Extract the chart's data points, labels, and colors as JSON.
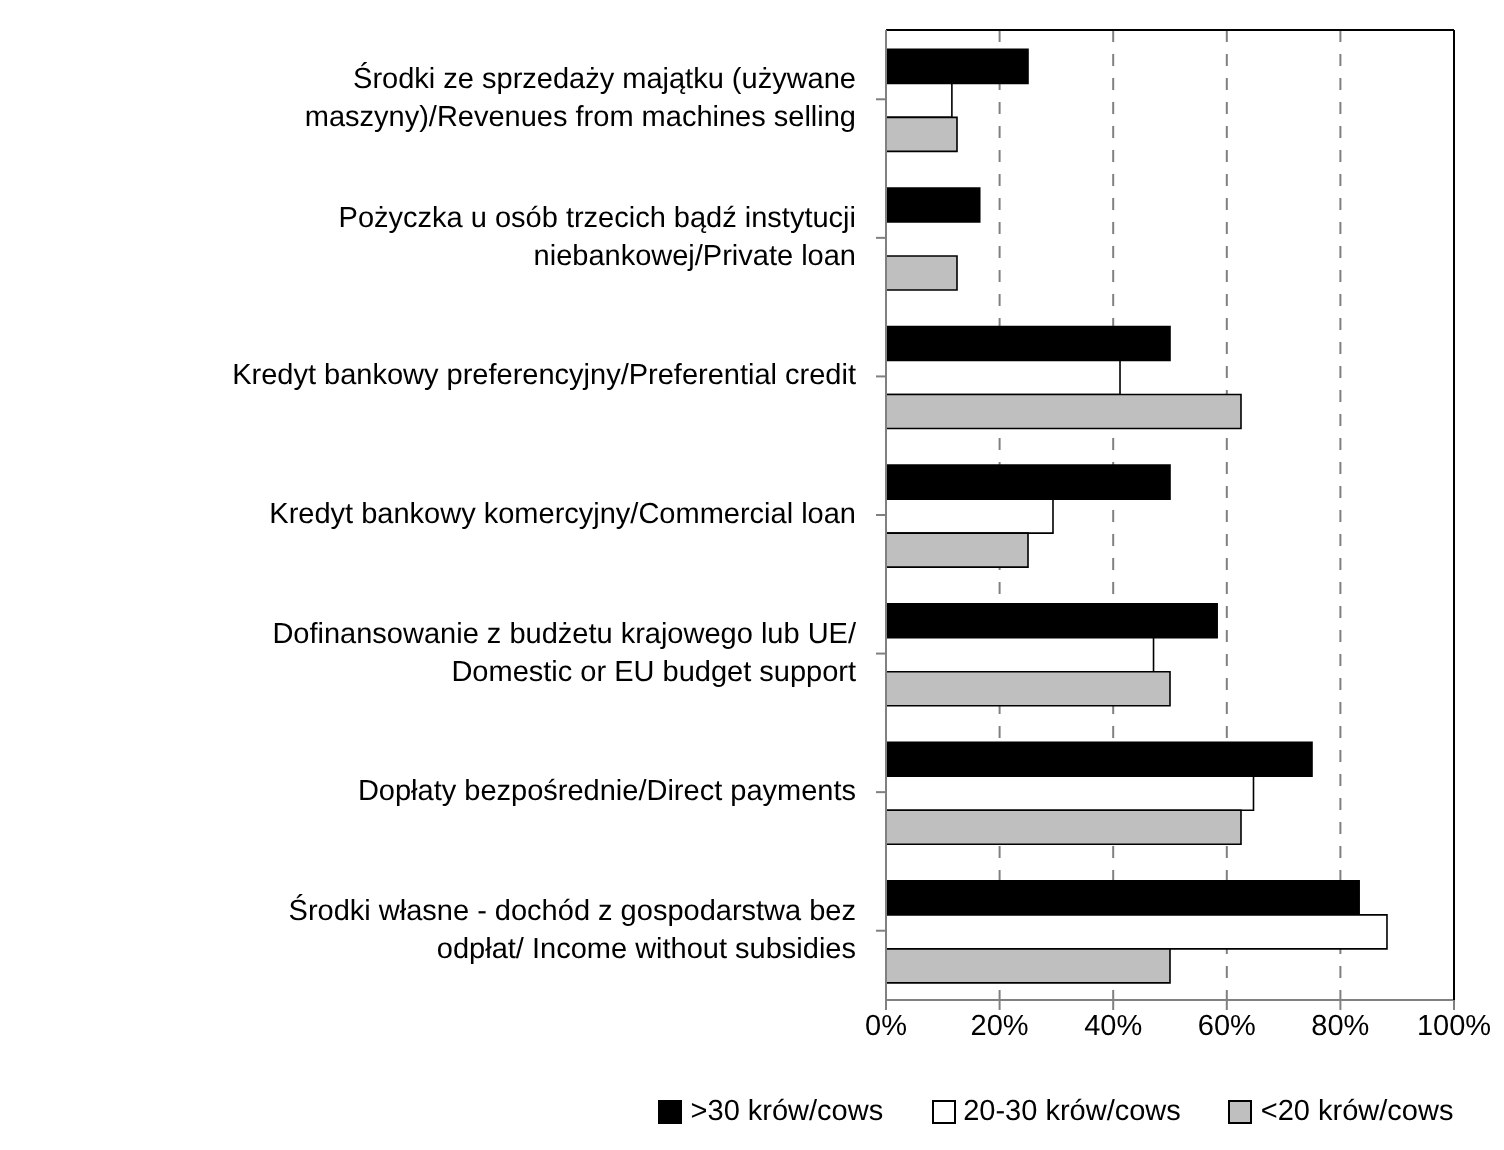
{
  "chart_data": {
    "type": "bar",
    "orientation": "horizontal",
    "categories": [
      "Środki ze sprzedaży majątku (używane maszyny)/Revenues from machines selling",
      "Pożyczka u osób trzecich bądź instytucji niebankowej/Private loan",
      "Kredyt bankowy preferencyjny/Preferential credit",
      "Kredyt bankowy komercyjny/Commercial loan",
      "Dofinansowanie z budżetu krajowego lub UE/ Domestic or EU budget support",
      "Dopłaty bezpośrednie/Direct payments",
      "Środki własne - dochód z gospodarstwa bez odpłat/ Income without subsidies"
    ],
    "series": [
      {
        "name": ">30 krów/cows",
        "color": "#000000",
        "values": [
          25,
          16.5,
          50,
          50,
          58.3,
          75,
          83.3
        ]
      },
      {
        "name": "20-30 krów/cows",
        "color": "#ffffff",
        "values": [
          11.6,
          null,
          41.2,
          29.4,
          47.1,
          64.7,
          88.2
        ]
      },
      {
        "name": "<20 krów/cows",
        "color": "#bfbfbf",
        "values": [
          12.5,
          12.5,
          62.5,
          25,
          50,
          62.5,
          50
        ]
      }
    ],
    "xlim": [
      0,
      100
    ],
    "xticks": [
      {
        "value": 0,
        "label": "0%"
      },
      {
        "value": 20,
        "label": "20%"
      },
      {
        "value": 40,
        "label": "40%"
      },
      {
        "value": 60,
        "label": "60%"
      },
      {
        "value": 80,
        "label": "80%"
      },
      {
        "value": 100,
        "label": "100%"
      }
    ],
    "grid": "x",
    "legend": "bottom"
  }
}
